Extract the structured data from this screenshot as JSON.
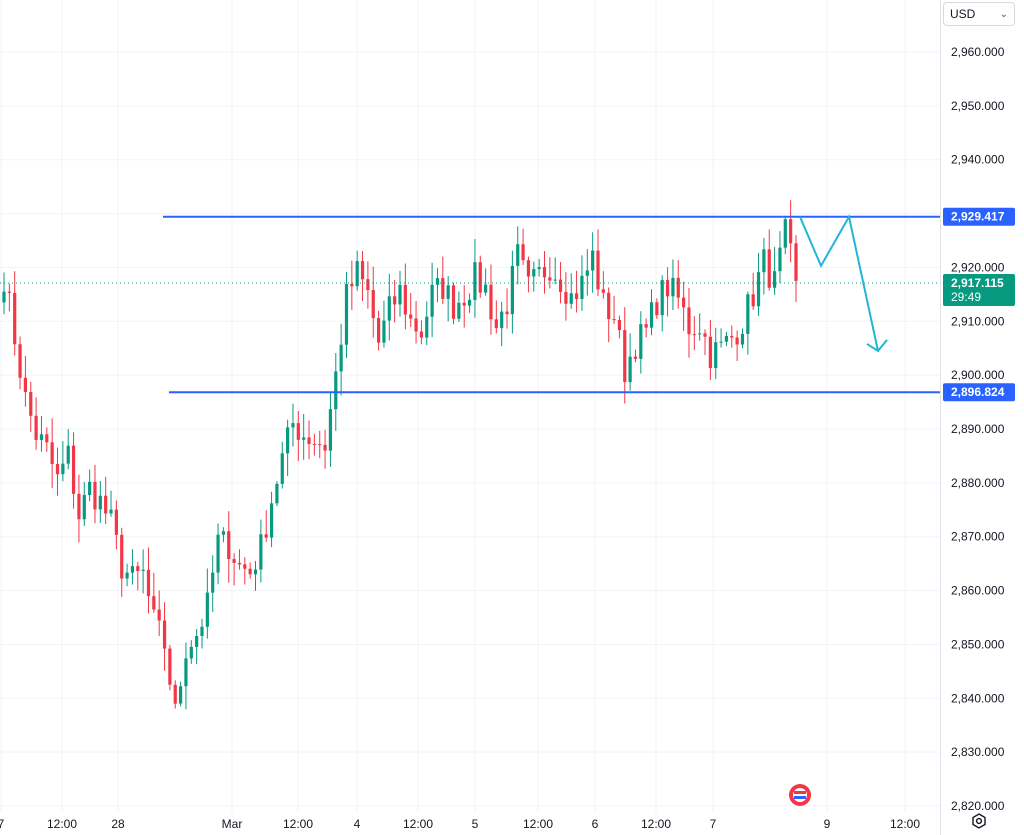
{
  "toolbar": {
    "currency": "USD"
  },
  "colors": {
    "up": "#089981",
    "down": "#f23645",
    "level": "#2962ff",
    "projection": "#22b5d6",
    "current": "#089981"
  },
  "chart_data": {
    "type": "candlestick",
    "title": "",
    "ylim": [
      2817,
      2970
    ],
    "y_ticks": [
      "2,960.000",
      "2,950.000",
      "2,940.000",
      "2,930.000",
      "2,920.000",
      "2,910.000",
      "2,900.000",
      "2,890.000",
      "2,880.000",
      "2,870.000",
      "2,860.000",
      "2,850.000",
      "2,840.000",
      "2,830.000",
      "2,820.000"
    ],
    "x_ticks": [
      "7",
      "12:00",
      "28",
      "Mar",
      "12:00",
      "4",
      "12:00",
      "5",
      "12:00",
      "6",
      "12:00",
      "7",
      "9",
      "12:00"
    ],
    "levels": [
      {
        "name": "resistance",
        "value": 2929.417,
        "label": "2,929.417"
      },
      {
        "name": "support",
        "value": 2896.824,
        "label": "2,896.824"
      }
    ],
    "current_price": {
      "value": 2917.115,
      "label": "2,917.115",
      "countdown": "29:49"
    },
    "projection": [
      2929.4,
      2920.3,
      2929.4,
      2904.5
    ],
    "candles_anchor_close": [
      2918.5,
      2907.0,
      2895.5,
      2889.0,
      2886.0,
      2880.5,
      2885.0,
      2874.0,
      2879.0,
      2876.5,
      2872.5,
      2864.5,
      2862.0,
      2863.0,
      2854.0,
      2850.0,
      2837.0,
      2849.5,
      2852.0,
      2857.0,
      2869.0,
      2868.5,
      2864.5,
      2863.5,
      2868.0,
      2877.0,
      2884.5,
      2891.0,
      2889.0,
      2888.0,
      2887.0,
      2900.0,
      2914.5,
      2919.0,
      2915.0,
      2906.0,
      2912.0,
      2915.5,
      2910.0,
      2908.0,
      2915.0,
      2916.5,
      2913.0,
      2915.0,
      2918.0,
      2916.0,
      2909.0,
      2913.5,
      2922.0,
      2916.0,
      2918.5,
      2920.5,
      2918.0,
      2914.5,
      2917.0,
      2922.0,
      2913.0,
      2911.0,
      2901.0,
      2906.0,
      2908.0,
      2914.0,
      2916.5,
      2914.0,
      2909.0,
      2909.5,
      2904.0,
      2905.0,
      2907.0,
      2910.0,
      2915.0,
      2921.0,
      2917.0,
      2926.0,
      2917.5
    ]
  }
}
